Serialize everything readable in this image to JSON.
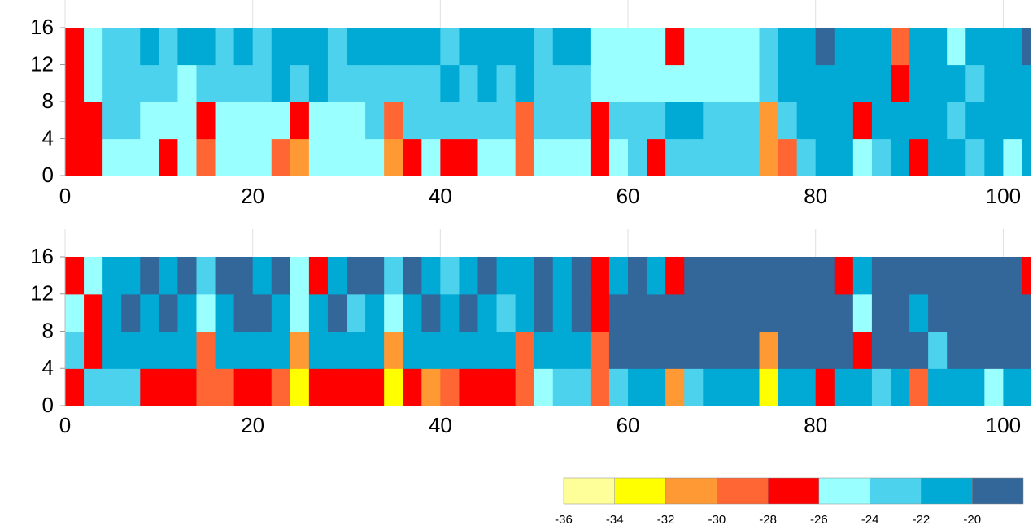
{
  "chart_data": [
    {
      "type": "contour",
      "x": [
        0,
        2,
        4,
        6,
        8,
        10,
        12,
        14,
        16,
        18,
        20,
        22,
        24,
        26,
        28,
        30,
        32,
        34,
        36,
        38,
        40,
        42,
        44,
        46,
        48,
        50,
        52,
        54,
        56,
        58,
        60,
        62,
        64,
        66,
        68,
        70,
        72,
        74,
        76,
        78,
        80,
        82,
        84,
        86,
        88,
        90,
        92,
        94,
        96,
        98,
        100,
        102,
        104
      ],
      "y": [
        0,
        4,
        8,
        12,
        16
      ],
      "z": [
        [
          -27,
          -27,
          -25,
          -25,
          -25,
          -27,
          -25,
          -29,
          -25,
          -25,
          -25,
          -29,
          -31,
          -25,
          -25,
          -25,
          -25,
          -31,
          -27,
          -25,
          -27,
          -27,
          -25,
          -25,
          -29,
          -25,
          -25,
          -25,
          -27,
          -25,
          -23,
          -27,
          -23,
          -23,
          -23,
          -23,
          -23,
          -31,
          -29,
          -23,
          -21,
          -21,
          -25,
          -23,
          -21,
          -27,
          -21,
          -21,
          -23,
          -21,
          -25,
          -21
        ],
        [
          -27,
          -27,
          -23,
          -23,
          -25,
          -25,
          -25,
          -27,
          -25,
          -25,
          -25,
          -25,
          -27,
          -25,
          -25,
          -25,
          -23,
          -29,
          -23,
          -23,
          -23,
          -23,
          -23,
          -23,
          -29,
          -23,
          -23,
          -23,
          -27,
          -23,
          -23,
          -23,
          -21,
          -21,
          -23,
          -23,
          -23,
          -31,
          -23,
          -21,
          -21,
          -21,
          -27,
          -21,
          -21,
          -21,
          -21,
          -23,
          -21,
          -21,
          -21,
          -21
        ],
        [
          -27,
          -25,
          -23,
          -23,
          -23,
          -23,
          -25,
          -23,
          -23,
          -23,
          -23,
          -21,
          -23,
          -21,
          -23,
          -23,
          -23,
          -23,
          -23,
          -23,
          -21,
          -23,
          -21,
          -23,
          -21,
          -23,
          -23,
          -23,
          -25,
          -25,
          -25,
          -25,
          -25,
          -25,
          -25,
          -25,
          -25,
          -23,
          -21,
          -21,
          -21,
          -21,
          -21,
          -21,
          -27,
          -21,
          -21,
          -21,
          -23,
          -21,
          -21,
          -21
        ],
        [
          -27,
          -25,
          -23,
          -23,
          -21,
          -23,
          -21,
          -21,
          -23,
          -21,
          -23,
          -21,
          -21,
          -21,
          -23,
          -21,
          -21,
          -21,
          -21,
          -21,
          -23,
          -21,
          -21,
          -21,
          -21,
          -23,
          -21,
          -21,
          -25,
          -25,
          -25,
          -25,
          -27,
          -25,
          -25,
          -25,
          -25,
          -23,
          -21,
          -21,
          -19,
          -21,
          -21,
          -21,
          -29,
          -21,
          -21,
          -25,
          -21,
          -21,
          -21,
          -19
        ]
      ],
      "xlim": [
        0,
        103
      ],
      "ylim": [
        0,
        16
      ],
      "xticks": [
        0,
        20,
        40,
        60,
        80,
        100
      ],
      "yticks": [
        0,
        4,
        8,
        12,
        16
      ],
      "grid": true
    },
    {
      "type": "contour",
      "x": [
        0,
        2,
        4,
        6,
        8,
        10,
        12,
        14,
        16,
        18,
        20,
        22,
        24,
        26,
        28,
        30,
        32,
        34,
        36,
        38,
        40,
        42,
        44,
        46,
        48,
        50,
        52,
        54,
        56,
        58,
        60,
        62,
        64,
        66,
        68,
        70,
        72,
        74,
        76,
        78,
        80,
        82,
        84,
        86,
        88,
        90,
        92,
        94,
        96,
        98,
        100,
        102,
        104
      ],
      "y": [
        0,
        4,
        8,
        12,
        16
      ],
      "z": [
        [
          -27,
          -23,
          -23,
          -23,
          -27,
          -27,
          -27,
          -29,
          -29,
          -27,
          -27,
          -29,
          -33,
          -27,
          -27,
          -27,
          -27,
          -33,
          -27,
          -31,
          -29,
          -27,
          -27,
          -27,
          -29,
          -25,
          -23,
          -23,
          -29,
          -23,
          -21,
          -21,
          -31,
          -23,
          -21,
          -21,
          -21,
          -33,
          -21,
          -21,
          -27,
          -21,
          -21,
          -23,
          -21,
          -29,
          -21,
          -21,
          -21,
          -25,
          -21,
          -21
        ],
        [
          -23,
          -27,
          -21,
          -21,
          -21,
          -21,
          -21,
          -29,
          -21,
          -21,
          -21,
          -21,
          -31,
          -21,
          -21,
          -21,
          -21,
          -31,
          -21,
          -21,
          -21,
          -21,
          -21,
          -21,
          -29,
          -21,
          -21,
          -21,
          -29,
          -19,
          -19,
          -19,
          -19,
          -19,
          -19,
          -19,
          -19,
          -31,
          -19,
          -19,
          -19,
          -19,
          -27,
          -19,
          -19,
          -19,
          -23,
          -19,
          -19,
          -19,
          -19,
          -19
        ],
        [
          -25,
          -27,
          -21,
          -19,
          -21,
          -19,
          -21,
          -25,
          -21,
          -19,
          -19,
          -21,
          -25,
          -21,
          -19,
          -23,
          -21,
          -25,
          -21,
          -19,
          -21,
          -19,
          -21,
          -23,
          -21,
          -19,
          -21,
          -19,
          -27,
          -19,
          -19,
          -19,
          -19,
          -19,
          -19,
          -19,
          -19,
          -19,
          -19,
          -19,
          -19,
          -19,
          -25,
          -19,
          -19,
          -21,
          -19,
          -19,
          -19,
          -19,
          -19,
          -19
        ],
        [
          -27,
          -25,
          -21,
          -21,
          -19,
          -21,
          -19,
          -23,
          -19,
          -19,
          -21,
          -19,
          -25,
          -27,
          -21,
          -19,
          -19,
          -23,
          -19,
          -21,
          -23,
          -21,
          -19,
          -21,
          -21,
          -19,
          -21,
          -19,
          -27,
          -21,
          -19,
          -21,
          -27,
          -19,
          -19,
          -19,
          -19,
          -19,
          -19,
          -19,
          -19,
          -27,
          -21,
          -19,
          -19,
          -19,
          -19,
          -19,
          -19,
          -19,
          -19,
          -27
        ]
      ],
      "xlim": [
        0,
        103
      ],
      "ylim": [
        0,
        16
      ],
      "xticks": [
        0,
        20,
        40,
        60,
        80,
        100
      ],
      "yticks": [
        0,
        4,
        8,
        12,
        16
      ],
      "grid": true
    }
  ],
  "colorbar": {
    "ticks": [
      -36,
      -34,
      -32,
      -30,
      -28,
      -26,
      -24,
      -22,
      -20
    ],
    "colors": [
      "#ffff99",
      "#ffff00",
      "#ff9933",
      "#ff6633",
      "#ff0000",
      "#99ffff",
      "#4dd2ee",
      "#00aad4",
      "#336699"
    ]
  }
}
